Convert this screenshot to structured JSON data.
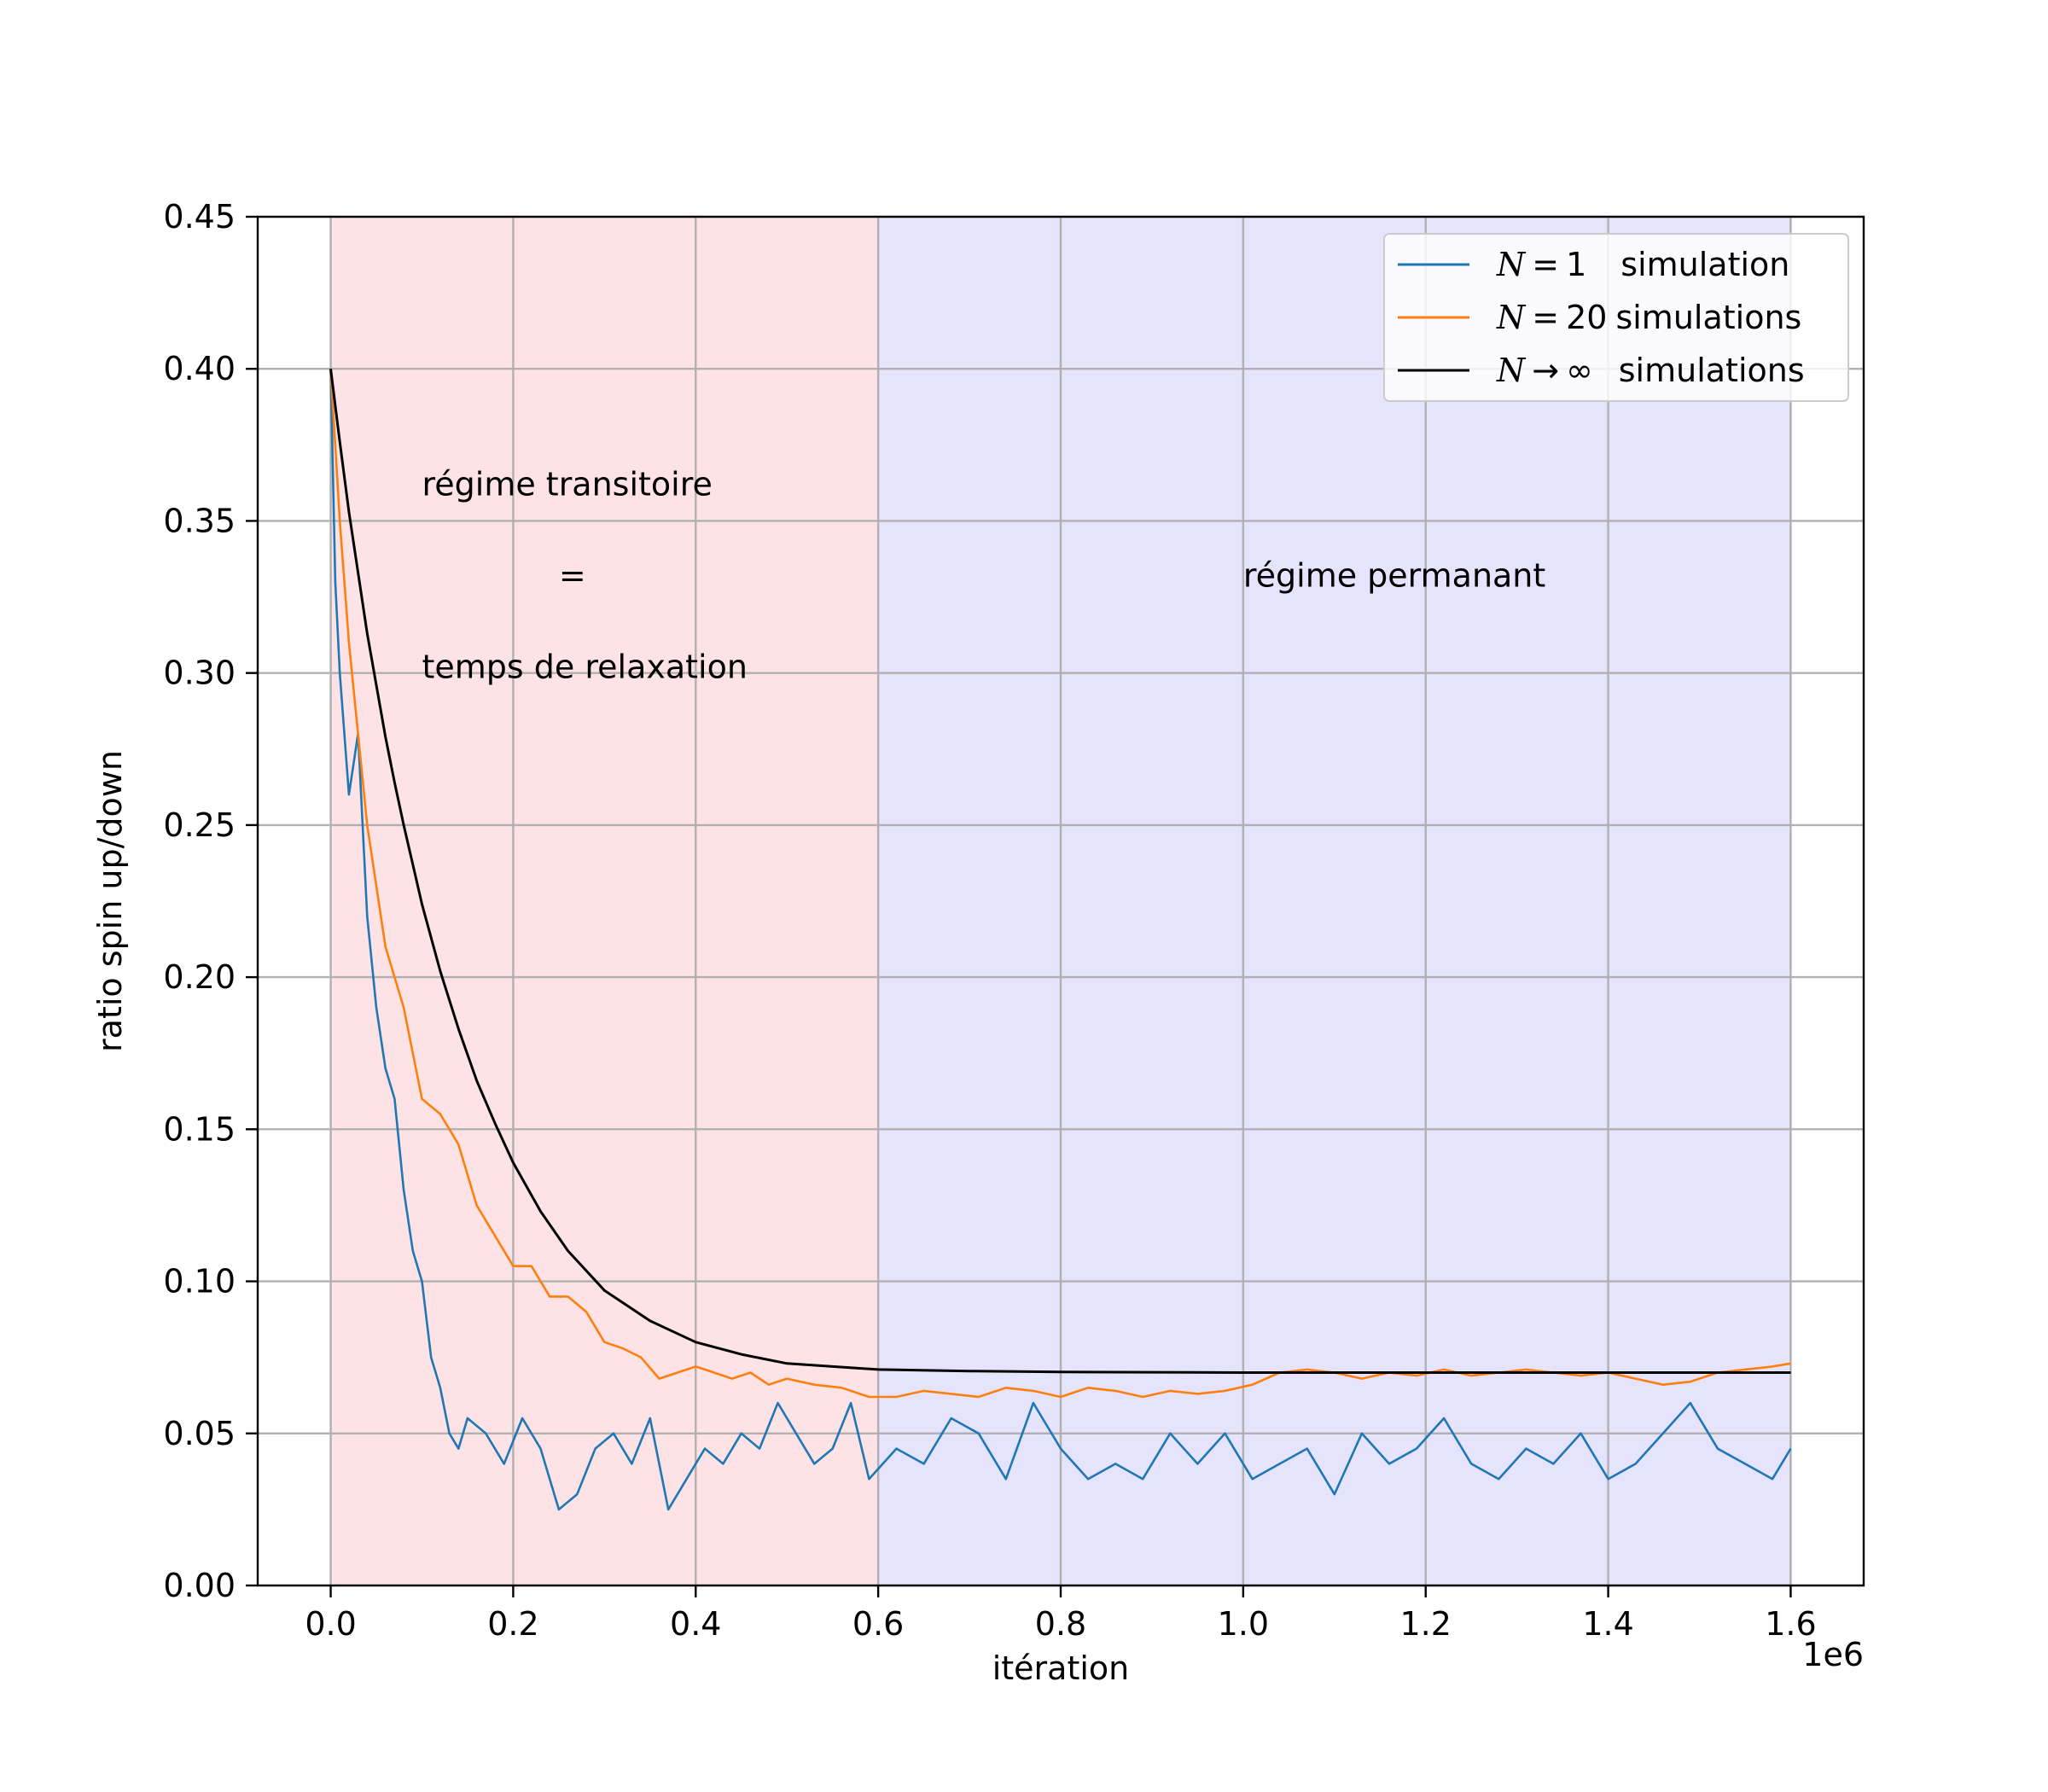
{
  "chart_data": {
    "type": "line",
    "xlabel": "itération",
    "ylabel": "ratio spin up/down",
    "x_offset_label": "1e6",
    "xlim": [
      -80000,
      1680000
    ],
    "ylim": [
      0.0,
      0.45
    ],
    "x_ticks": [
      0,
      200000,
      400000,
      600000,
      800000,
      1000000,
      1200000,
      1400000,
      1600000
    ],
    "x_tick_labels": [
      "0.0",
      "0.2",
      "0.4",
      "0.6",
      "0.8",
      "1.0",
      "1.2",
      "1.4",
      "1.6"
    ],
    "y_ticks": [
      0.0,
      0.05,
      0.1,
      0.15,
      0.2,
      0.25,
      0.3,
      0.35,
      0.4,
      0.45
    ],
    "y_tick_labels": [
      "0.00",
      "0.05",
      "0.10",
      "0.15",
      "0.20",
      "0.25",
      "0.30",
      "0.35",
      "0.40",
      "0.45"
    ],
    "grid": true,
    "legend_position": "top-right",
    "regions": [
      {
        "x0": 0,
        "x1": 600000,
        "color": "#fde3e6"
      },
      {
        "x0": 600000,
        "x1": 1600000,
        "color": "#e5e4fc"
      }
    ],
    "annotations": [
      {
        "text": "régime transitoire",
        "x": 100000,
        "y": 0.362
      },
      {
        "text": "=",
        "x": 250000,
        "y": 0.332
      },
      {
        "text": "temps de relaxation",
        "x": 100000,
        "y": 0.302
      },
      {
        "text": "régime permanant",
        "x": 1000000,
        "y": 0.332
      }
    ],
    "series": [
      {
        "var": "N",
        "rel": "=",
        "count": "1",
        "suffix": "simulation",
        "color": "#1f77b4",
        "x": [
          0,
          5000,
          10000,
          20000,
          30000,
          40000,
          50000,
          60000,
          70000,
          80000,
          90000,
          100000,
          110000,
          120000,
          130000,
          140000,
          150000,
          170000,
          190000,
          210000,
          230000,
          250000,
          270000,
          290000,
          310000,
          330000,
          350000,
          370000,
          390000,
          410000,
          430000,
          450000,
          470000,
          490000,
          510000,
          530000,
          550000,
          570000,
          590000,
          620000,
          650000,
          680000,
          710000,
          740000,
          770000,
          800000,
          830000,
          860000,
          890000,
          920000,
          950000,
          980000,
          1010000,
          1040000,
          1070000,
          1100000,
          1130000,
          1160000,
          1190000,
          1220000,
          1250000,
          1280000,
          1310000,
          1340000,
          1370000,
          1400000,
          1430000,
          1460000,
          1490000,
          1520000,
          1550000,
          1580000,
          1600000
        ],
        "y": [
          0.4,
          0.33,
          0.3,
          0.26,
          0.28,
          0.22,
          0.19,
          0.17,
          0.16,
          0.13,
          0.11,
          0.1,
          0.075,
          0.065,
          0.05,
          0.045,
          0.055,
          0.05,
          0.04,
          0.055,
          0.045,
          0.025,
          0.03,
          0.045,
          0.05,
          0.04,
          0.055,
          0.025,
          0.035,
          0.045,
          0.04,
          0.05,
          0.045,
          0.06,
          0.05,
          0.04,
          0.045,
          0.06,
          0.035,
          0.045,
          0.04,
          0.055,
          0.05,
          0.035,
          0.06,
          0.045,
          0.035,
          0.04,
          0.035,
          0.05,
          0.04,
          0.05,
          0.035,
          0.04,
          0.045,
          0.03,
          0.05,
          0.04,
          0.045,
          0.055,
          0.04,
          0.035,
          0.045,
          0.04,
          0.05,
          0.035,
          0.04,
          0.05,
          0.06,
          0.045,
          0.04,
          0.035,
          0.045
        ]
      },
      {
        "var": "N",
        "rel": "=",
        "count": "20",
        "suffix": "simulations",
        "color": "#ff7f0e",
        "x": [
          0,
          10000,
          20000,
          30000,
          40000,
          50000,
          60000,
          70000,
          80000,
          90000,
          100000,
          120000,
          140000,
          160000,
          180000,
          200000,
          220000,
          240000,
          260000,
          280000,
          300000,
          320000,
          340000,
          360000,
          380000,
          400000,
          420000,
          440000,
          460000,
          480000,
          500000,
          530000,
          560000,
          590000,
          620000,
          650000,
          680000,
          710000,
          740000,
          770000,
          800000,
          830000,
          860000,
          890000,
          920000,
          950000,
          980000,
          1010000,
          1040000,
          1070000,
          1100000,
          1130000,
          1160000,
          1190000,
          1220000,
          1250000,
          1280000,
          1310000,
          1340000,
          1370000,
          1400000,
          1430000,
          1460000,
          1490000,
          1520000,
          1550000,
          1580000,
          1600000
        ],
        "y": [
          0.4,
          0.35,
          0.31,
          0.28,
          0.25,
          0.23,
          0.21,
          0.2,
          0.19,
          0.175,
          0.16,
          0.155,
          0.145,
          0.125,
          0.115,
          0.105,
          0.105,
          0.095,
          0.095,
          0.09,
          0.08,
          0.078,
          0.075,
          0.068,
          0.07,
          0.072,
          0.07,
          0.068,
          0.07,
          0.066,
          0.068,
          0.066,
          0.065,
          0.062,
          0.062,
          0.064,
          0.063,
          0.062,
          0.065,
          0.064,
          0.062,
          0.065,
          0.064,
          0.062,
          0.064,
          0.063,
          0.064,
          0.066,
          0.07,
          0.071,
          0.07,
          0.068,
          0.07,
          0.069,
          0.071,
          0.069,
          0.07,
          0.071,
          0.07,
          0.069,
          0.07,
          0.068,
          0.066,
          0.067,
          0.07,
          0.071,
          0.072,
          0.073
        ]
      },
      {
        "var": "N",
        "rel": "→",
        "count": "∞",
        "suffix": "simulations",
        "color": "#000000",
        "x": [
          0,
          10000,
          20000,
          30000,
          40000,
          50000,
          60000,
          70000,
          80000,
          90000,
          100000,
          120000,
          140000,
          160000,
          180000,
          200000,
          230000,
          260000,
          300000,
          350000,
          400000,
          450000,
          500000,
          550000,
          600000,
          700000,
          800000,
          900000,
          1000000,
          1100000,
          1200000,
          1300000,
          1400000,
          1500000,
          1600000
        ],
        "y": [
          0.4,
          0.376,
          0.353,
          0.333,
          0.313,
          0.296,
          0.279,
          0.264,
          0.25,
          0.237,
          0.224,
          0.202,
          0.183,
          0.166,
          0.152,
          0.139,
          0.123,
          0.11,
          0.097,
          0.087,
          0.08,
          0.076,
          0.073,
          0.072,
          0.071,
          0.0705,
          0.0702,
          0.0701,
          0.07,
          0.07,
          0.07,
          0.07,
          0.07,
          0.07,
          0.07
        ]
      }
    ]
  }
}
